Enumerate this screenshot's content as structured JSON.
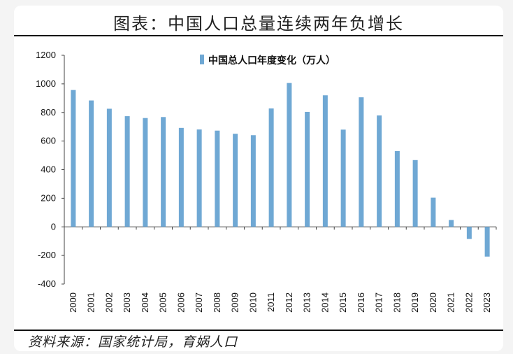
{
  "header": {
    "title": "图表：中国人口总量连续两年负增长"
  },
  "footer": {
    "source": "资料来源：国家统计局，育娲人口"
  },
  "chart_data": {
    "type": "bar",
    "title": "",
    "xlabel": "",
    "ylabel": "",
    "ylim": [
      -400,
      1200
    ],
    "yticks": [
      1200,
      1000,
      800,
      600,
      400,
      200,
      0,
      -200,
      -400
    ],
    "grid": false,
    "legend_position": "top",
    "bar_color": "#6fa8d4",
    "categories": [
      "2000",
      "2001",
      "2002",
      "2003",
      "2004",
      "2005",
      "2006",
      "2007",
      "2008",
      "2009",
      "2010",
      "2011",
      "2012",
      "2013",
      "2014",
      "2015",
      "2016",
      "2017",
      "2018",
      "2019",
      "2020",
      "2021",
      "2022",
      "2023"
    ],
    "series": [
      {
        "name": "中国总人口年度变化（万人）",
        "values": [
          957,
          884,
          826,
          774,
          761,
          768,
          692,
          681,
          673,
          651,
          641,
          828,
          1006,
          804,
          920,
          680,
          906,
          779,
          530,
          467,
          204,
          48,
          -85,
          -208
        ]
      }
    ]
  }
}
